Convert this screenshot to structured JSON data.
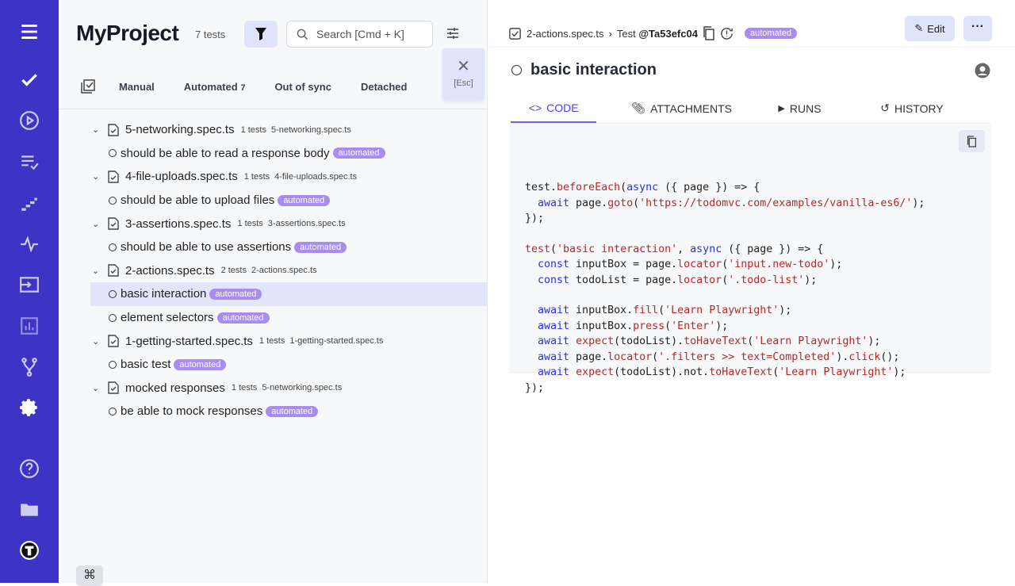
{
  "colors": {
    "sidebar": "#3d33c4",
    "accent": "#4b43d6",
    "badge": "#a88cf0"
  },
  "sidebar": {
    "items": [
      "menu-icon",
      "check-icon",
      "play-icon",
      "list-check-icon",
      "steps-icon",
      "pulse-icon",
      "import-icon",
      "analytics-icon",
      "branch-icon",
      "settings-icon",
      "help-icon",
      "folder-icon",
      "logo-icon"
    ]
  },
  "header": {
    "title": "MyProject",
    "count": "7 tests",
    "search_placeholder": "Search [Cmd + K]",
    "esc_label": "[Esc]"
  },
  "tabs": [
    {
      "label": "Manual"
    },
    {
      "label": "Automated",
      "count": "7"
    },
    {
      "label": "Out of sync"
    },
    {
      "label": "Detached"
    }
  ],
  "tree": [
    {
      "name": "5-networking.spec.ts",
      "count": "1 tests",
      "file": "5-networking.spec.ts",
      "tests": [
        {
          "name": "should be able to read a response body",
          "badge": "automated"
        }
      ]
    },
    {
      "name": "4-file-uploads.spec.ts",
      "count": "1 tests",
      "file": "4-file-uploads.spec.ts",
      "tests": [
        {
          "name": "should be able to upload files",
          "badge": "automated"
        }
      ]
    },
    {
      "name": "3-assertions.spec.ts",
      "count": "1 tests",
      "file": "3-assertions.spec.ts",
      "tests": [
        {
          "name": "should be able to use assertions",
          "badge": "automated"
        }
      ]
    },
    {
      "name": "2-actions.spec.ts",
      "count": "2 tests",
      "file": "2-actions.spec.ts",
      "tests": [
        {
          "name": "basic interaction",
          "badge": "automated",
          "selected": true
        },
        {
          "name": "element selectors",
          "badge": "automated"
        }
      ]
    },
    {
      "name": "1-getting-started.spec.ts",
      "count": "1 tests",
      "file": "1-getting-started.spec.ts",
      "tests": [
        {
          "name": "basic test",
          "badge": "automated"
        }
      ]
    },
    {
      "name": "mocked responses",
      "count": "1 tests",
      "file": "5-networking.spec.ts",
      "tests": [
        {
          "name": "be able to mock responses",
          "badge": "automated"
        }
      ]
    }
  ],
  "cmd_key": "⌘",
  "detail": {
    "breadcrumb_file": "2-actions.spec.ts",
    "breadcrumb_sep": "›",
    "breadcrumb_test": "Test",
    "test_id": "@Ta53efc04",
    "badge": "automated",
    "edit_label": "Edit",
    "more_label": "···",
    "title": "basic interaction",
    "tabs": [
      {
        "label": "CODE",
        "active": true
      },
      {
        "label": "ATTACHMENTS"
      },
      {
        "label": "RUNS"
      },
      {
        "label": "HISTORY"
      }
    ],
    "code": [
      [
        [
          "test.",
          ""
        ],
        [
          "beforeEach",
          "fn"
        ],
        [
          "(",
          ""
        ],
        [
          "async",
          "kw"
        ],
        [
          " ({ page }) => {",
          ""
        ]
      ],
      [
        [
          "  ",
          ""
        ],
        [
          "await",
          "kw"
        ],
        [
          " page.",
          ""
        ],
        [
          "goto",
          "fn"
        ],
        [
          "(",
          ""
        ],
        [
          "'https://todomvc.com/examples/vanilla-es6/'",
          "str"
        ],
        [
          ");",
          ""
        ]
      ],
      [
        [
          "});",
          ""
        ]
      ],
      [],
      [
        [
          "test",
          "fn"
        ],
        [
          "(",
          ""
        ],
        [
          "'basic interaction'",
          "str"
        ],
        [
          ", ",
          ""
        ],
        [
          "async",
          "kw"
        ],
        [
          " ({ page }) => {",
          ""
        ]
      ],
      [
        [
          "  ",
          ""
        ],
        [
          "const",
          "kw"
        ],
        [
          " inputBox = page.",
          ""
        ],
        [
          "locator",
          "fn"
        ],
        [
          "(",
          ""
        ],
        [
          "'input.new-todo'",
          "str"
        ],
        [
          ");",
          ""
        ]
      ],
      [
        [
          "  ",
          ""
        ],
        [
          "const",
          "kw"
        ],
        [
          " todoList = page.",
          ""
        ],
        [
          "locator",
          "fn"
        ],
        [
          "(",
          ""
        ],
        [
          "'.todo-list'",
          "str"
        ],
        [
          ");",
          ""
        ]
      ],
      [],
      [
        [
          "  ",
          ""
        ],
        [
          "await",
          "kw"
        ],
        [
          " inputBox.",
          ""
        ],
        [
          "fill",
          "fn"
        ],
        [
          "(",
          ""
        ],
        [
          "'Learn Playwright'",
          "str"
        ],
        [
          ");",
          ""
        ]
      ],
      [
        [
          "  ",
          ""
        ],
        [
          "await",
          "kw"
        ],
        [
          " inputBox.",
          ""
        ],
        [
          "press",
          "fn"
        ],
        [
          "(",
          ""
        ],
        [
          "'Enter'",
          "str"
        ],
        [
          ");",
          ""
        ]
      ],
      [
        [
          "  ",
          ""
        ],
        [
          "await",
          "kw"
        ],
        [
          " ",
          ""
        ],
        [
          "expect",
          "fn"
        ],
        [
          "(todoList).",
          ""
        ],
        [
          "toHaveText",
          "fn"
        ],
        [
          "(",
          ""
        ],
        [
          "'Learn Playwright'",
          "str"
        ],
        [
          ");",
          ""
        ]
      ],
      [
        [
          "  ",
          ""
        ],
        [
          "await",
          "kw"
        ],
        [
          " page.",
          ""
        ],
        [
          "locator",
          "fn"
        ],
        [
          "(",
          ""
        ],
        [
          "'.filters >> text=Completed'",
          "str"
        ],
        [
          ").",
          ""
        ],
        [
          "click",
          "fn"
        ],
        [
          "();",
          ""
        ]
      ],
      [
        [
          "  ",
          ""
        ],
        [
          "await",
          "kw"
        ],
        [
          " ",
          ""
        ],
        [
          "expect",
          "fn"
        ],
        [
          "(todoList).not.",
          ""
        ],
        [
          "toHaveText",
          "fn"
        ],
        [
          "(",
          ""
        ],
        [
          "'Learn Playwright'",
          "str"
        ],
        [
          ");",
          ""
        ]
      ],
      [
        [
          "});",
          ""
        ]
      ]
    ]
  }
}
